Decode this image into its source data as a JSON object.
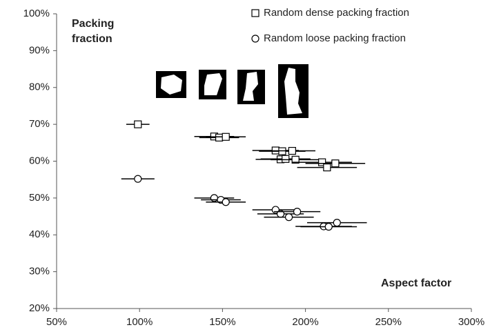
{
  "chart_data": {
    "type": "scatter",
    "xlabel": "Aspect factor",
    "ylabel": "Packing fraction",
    "xlim": [
      50,
      300
    ],
    "ylim": [
      20,
      100
    ],
    "xticks": [
      {
        "value": 50,
        "label": "50%"
      },
      {
        "value": 100,
        "label": "100%"
      },
      {
        "value": 150,
        "label": "150%"
      },
      {
        "value": 200,
        "label": "200%"
      },
      {
        "value": 250,
        "label": "250%"
      },
      {
        "value": 300,
        "label": "300%"
      }
    ],
    "yticks": [
      {
        "value": 20,
        "label": "20%"
      },
      {
        "value": 30,
        "label": "30%"
      },
      {
        "value": 40,
        "label": "40%"
      },
      {
        "value": 50,
        "label": "50%"
      },
      {
        "value": 60,
        "label": "60%"
      },
      {
        "value": 70,
        "label": "70%"
      },
      {
        "value": 80,
        "label": "80%"
      },
      {
        "value": 90,
        "label": "90%"
      },
      {
        "value": 100,
        "label": "100%"
      }
    ],
    "series": [
      {
        "name": "Random dense packing fraction",
        "marker": "square",
        "color": "#000000",
        "x": [
          99,
          145,
          148,
          152,
          182,
          186,
          192,
          185,
          188,
          194,
          210,
          218,
          213
        ],
        "values": [
          70.0,
          66.7,
          66.4,
          66.6,
          62.9,
          62.7,
          62.8,
          60.5,
          60.6,
          60.4,
          59.7,
          59.4,
          58.3
        ],
        "xerr": [
          7,
          12,
          12,
          12,
          14,
          14,
          14,
          15,
          15,
          15,
          18,
          18,
          18
        ]
      },
      {
        "name": "Random loose packing fraction",
        "marker": "circle",
        "color": "#000000",
        "x": [
          99,
          145,
          149,
          152,
          182,
          185,
          195,
          190,
          211,
          214,
          219
        ],
        "values": [
          55.2,
          50.0,
          49.5,
          48.9,
          46.8,
          45.7,
          46.3,
          44.8,
          42.3,
          42.2,
          43.3
        ],
        "xerr": [
          10,
          12,
          12,
          12,
          14,
          14,
          14,
          15,
          17,
          17,
          18
        ]
      }
    ]
  }
}
